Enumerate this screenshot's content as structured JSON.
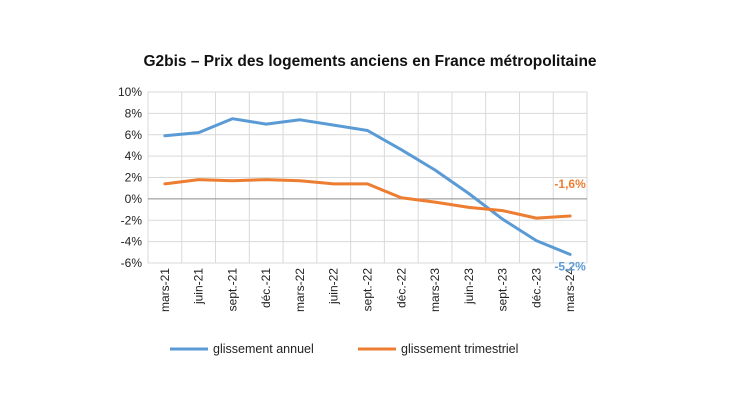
{
  "chart_data": {
    "type": "line",
    "title": "G2bis – Prix des logements anciens en France métropolitaine",
    "categories": [
      "mars-21",
      "juin-21",
      "sept.-21",
      "déc.-21",
      "mars-22",
      "juin-22",
      "sept.-22",
      "déc.-22",
      "mars-23",
      "juin-23",
      "sept.-23",
      "déc.-23",
      "mars-24"
    ],
    "y_ticks": [
      "10%",
      "8%",
      "6%",
      "4%",
      "2%",
      "0%",
      "-2%",
      "-4%",
      "-6%"
    ],
    "ylim": [
      -6,
      10
    ],
    "y_step": 2,
    "grid": true,
    "legend_position": "bottom",
    "series": [
      {
        "name": "glissement annuel",
        "color": "#5b9bd5",
        "values": [
          5.9,
          6.2,
          7.5,
          7.0,
          7.4,
          6.9,
          6.4,
          4.6,
          2.7,
          0.5,
          -1.9,
          -3.9,
          -5.2
        ],
        "end_label": "-5,2%"
      },
      {
        "name": "glissement trimestriel",
        "color": "#ed7d31",
        "values": [
          1.4,
          1.8,
          1.7,
          1.8,
          1.7,
          1.4,
          1.4,
          0.1,
          -0.3,
          -0.8,
          -1.1,
          -1.8,
          -1.6
        ],
        "end_label": "-1,6%"
      }
    ]
  }
}
